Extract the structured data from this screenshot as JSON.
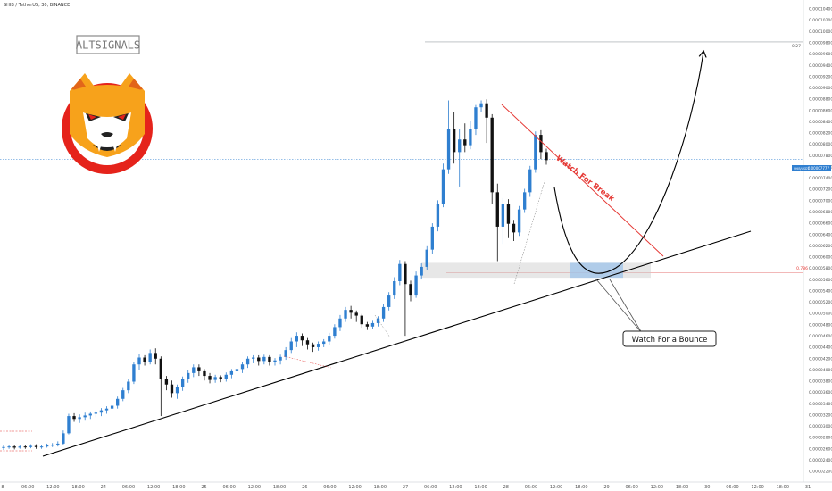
{
  "header": {
    "symbol_line": "SHIB / TetherUS, 30, BINANCE"
  },
  "brand": {
    "watermark": "ALTSIGNALS",
    "logo_icon": "shiba-inu-logo-icon"
  },
  "annotations": {
    "break_label": "Watch For Break",
    "bounce_label": "Watch For a Bounce",
    "fib_top": "0.27",
    "fib_mid": "0.786",
    "price_tag": "0.00007777",
    "price_tag_prefix": "SHIB/USDT"
  },
  "colors": {
    "up": "#2f7fd0",
    "down": "#111111",
    "trendline": "#000000",
    "break_line": "#e53935",
    "zone_fill": "#c9c9c9",
    "zone_highlight": "#9ec3ea",
    "grid": "#eef0f3"
  },
  "chart_data": {
    "type": "candlestick",
    "title": "SHIB / TetherUS, 30, BINANCE",
    "xlabel": "",
    "ylabel": "",
    "x_ticks": [
      "8",
      "06:00",
      "12:00",
      "18:00",
      "24",
      "06:00",
      "12:00",
      "18:00",
      "25",
      "06:00",
      "12:00",
      "18:00",
      "26",
      "06:00",
      "12:00",
      "18:00",
      "27",
      "06:00",
      "12:00",
      "18:00",
      "28",
      "06:00",
      "12:00",
      "18:00",
      "29",
      "06:00",
      "12:00",
      "18:00",
      "30",
      "06:00",
      "12:00",
      "18:00",
      "31"
    ],
    "y_ticks": [
      "0.00010400",
      "0.00010200",
      "0.00010000",
      "0.00009800",
      "0.00009600",
      "0.00009400",
      "0.00009200",
      "0.00009000",
      "0.00008800",
      "0.00008600",
      "0.00008400",
      "0.00008200",
      "0.00008000",
      "0.00007800",
      "0.00007600",
      "0.00007400",
      "0.00007200",
      "0.00007000",
      "0.00006800",
      "0.00006600",
      "0.00006400",
      "0.00006200",
      "0.00006000",
      "0.00005800",
      "0.00005600",
      "0.00005400",
      "0.00005200",
      "0.00005000",
      "0.00004800",
      "0.00004600",
      "0.00004400",
      "0.00004200",
      "0.00004000",
      "0.00003800",
      "0.00003600",
      "0.00003400",
      "0.00003200",
      "0.00003000",
      "0.00002800",
      "0.00002600",
      "0.00002400",
      "0.00002200"
    ],
    "ylim": [
      2.15e-05,
      0.0001055
    ],
    "grid": false,
    "current_price": 7.777e-05,
    "resistance_level": 9.82e-05,
    "support_zone": [
      5.71e-05,
      5.97e-05
    ],
    "candles": [
      [
        2.75e-05,
        2.76e-05,
        2.71e-05,
        2.79e-05
      ],
      [
        2.76e-05,
        2.77e-05,
        2.73e-05,
        2.8e-05
      ],
      [
        2.77e-05,
        2.75e-05,
        2.72e-05,
        2.8e-05
      ],
      [
        2.75e-05,
        2.77e-05,
        2.73e-05,
        2.79e-05
      ],
      [
        2.77e-05,
        2.76e-05,
        2.73e-05,
        2.8e-05
      ],
      [
        2.76e-05,
        2.78e-05,
        2.74e-05,
        2.81e-05
      ],
      [
        2.78e-05,
        2.76e-05,
        2.73e-05,
        2.81e-05
      ],
      [
        2.76e-05,
        2.77e-05,
        2.73e-05,
        2.8e-05
      ],
      [
        2.77e-05,
        2.79e-05,
        2.75e-05,
        2.82e-05
      ],
      [
        2.79e-05,
        2.8e-05,
        2.76e-05,
        2.83e-05
      ],
      [
        2.8e-05,
        2.82e-05,
        2.77e-05,
        2.86e-05
      ],
      [
        2.82e-05,
        3e-05,
        2.8e-05,
        3.05e-05
      ],
      [
        3e-05,
        3.3e-05,
        2.98e-05,
        3.34e-05
      ],
      [
        3.3e-05,
        3.25e-05,
        3.2e-05,
        3.35e-05
      ],
      [
        3.25e-05,
        3.28e-05,
        3.18e-05,
        3.33e-05
      ],
      [
        3.28e-05,
        3.31e-05,
        3.22e-05,
        3.36e-05
      ],
      [
        3.31e-05,
        3.34e-05,
        3.25e-05,
        3.38e-05
      ],
      [
        3.34e-05,
        3.36e-05,
        3.28e-05,
        3.4e-05
      ],
      [
        3.36e-05,
        3.4e-05,
        3.3e-05,
        3.44e-05
      ],
      [
        3.4e-05,
        3.43e-05,
        3.34e-05,
        3.47e-05
      ],
      [
        3.43e-05,
        3.48e-05,
        3.38e-05,
        3.51e-05
      ],
      [
        3.48e-05,
        3.6e-05,
        3.43e-05,
        3.64e-05
      ],
      [
        3.6e-05,
        3.75e-05,
        3.56e-05,
        3.79e-05
      ],
      [
        3.75e-05,
        3.9e-05,
        3.7e-05,
        3.95e-05
      ],
      [
        3.9e-05,
        4.2e-05,
        3.86e-05,
        4.25e-05
      ],
      [
        4.2e-05,
        4.32e-05,
        4.1e-05,
        4.38e-05
      ],
      [
        4.32e-05,
        4.25e-05,
        4.18e-05,
        4.36e-05
      ],
      [
        4.25e-05,
        4.4e-05,
        4.2e-05,
        4.46e-05
      ],
      [
        4.4e-05,
        4.3e-05,
        4.2e-05,
        4.48e-05
      ],
      [
        4.3e-05,
        3.95e-05,
        3.3e-05,
        4.34e-05
      ],
      [
        3.95e-05,
        3.85e-05,
        3.75e-05,
        4e-05
      ],
      [
        3.85e-05,
        3.7e-05,
        3.62e-05,
        3.92e-05
      ],
      [
        3.7e-05,
        3.8e-05,
        3.6e-05,
        3.85e-05
      ],
      [
        3.8e-05,
        3.95e-05,
        3.74e-05,
        3.99e-05
      ],
      [
        3.95e-05,
        4.05e-05,
        3.88e-05,
        4.1e-05
      ],
      [
        4.05e-05,
        4.15e-05,
        3.98e-05,
        4.2e-05
      ],
      [
        4.15e-05,
        4.08e-05,
        4e-05,
        4.2e-05
      ],
      [
        4.08e-05,
        4e-05,
        3.92e-05,
        4.12e-05
      ],
      [
        4e-05,
        3.93e-05,
        3.87e-05,
        4.05e-05
      ],
      [
        3.93e-05,
        3.98e-05,
        3.88e-05,
        4.02e-05
      ],
      [
        3.98e-05,
        3.95e-05,
        3.89e-05,
        4.01e-05
      ],
      [
        3.95e-05,
        4.02e-05,
        3.9e-05,
        4.06e-05
      ],
      [
        4.02e-05,
        4.08e-05,
        3.96e-05,
        4.12e-05
      ],
      [
        4.08e-05,
        4.12e-05,
        4.01e-05,
        4.16e-05
      ],
      [
        4.12e-05,
        4.2e-05,
        4.05e-05,
        4.25e-05
      ],
      [
        4.2e-05,
        4.3e-05,
        4.14e-05,
        4.34e-05
      ],
      [
        4.3e-05,
        4.32e-05,
        4.22e-05,
        4.36e-05
      ],
      [
        4.32e-05,
        4.26e-05,
        4.18e-05,
        4.36e-05
      ],
      [
        4.26e-05,
        4.33e-05,
        4.2e-05,
        4.37e-05
      ],
      [
        4.33e-05,
        4.24e-05,
        4.18e-05,
        4.36e-05
      ],
      [
        4.24e-05,
        4.27e-05,
        4.18e-05,
        4.31e-05
      ],
      [
        4.27e-05,
        4.33e-05,
        4.2e-05,
        4.37e-05
      ],
      [
        4.33e-05,
        4.45e-05,
        4.28e-05,
        4.5e-05
      ],
      [
        4.45e-05,
        4.6e-05,
        4.4e-05,
        4.66e-05
      ],
      [
        4.6e-05,
        4.7e-05,
        4.5e-05,
        4.76e-05
      ],
      [
        4.7e-05,
        4.62e-05,
        4.52e-05,
        4.74e-05
      ],
      [
        4.62e-05,
        4.55e-05,
        4.46e-05,
        4.66e-05
      ],
      [
        4.55e-05,
        4.5e-05,
        4.42e-05,
        4.58e-05
      ],
      [
        4.5e-05,
        4.56e-05,
        4.44e-05,
        4.6e-05
      ],
      [
        4.56e-05,
        4.6e-05,
        4.5e-05,
        4.64e-05
      ],
      [
        4.6e-05,
        4.7e-05,
        4.54e-05,
        4.75e-05
      ],
      [
        4.7e-05,
        4.85e-05,
        4.65e-05,
        4.9e-05
      ],
      [
        4.85e-05,
        5e-05,
        4.78e-05,
        5.06e-05
      ],
      [
        5e-05,
        5.15e-05,
        4.94e-05,
        5.2e-05
      ],
      [
        5.15e-05,
        5.1e-05,
        5e-05,
        5.22e-05
      ],
      [
        5.1e-05,
        5.05e-05,
        4.94e-05,
        5.14e-05
      ],
      [
        5.05e-05,
        4.9e-05,
        4.84e-05,
        5.08e-05
      ],
      [
        4.9e-05,
        4.86e-05,
        4.8e-05,
        4.94e-05
      ],
      [
        4.86e-05,
        4.92e-05,
        4.82e-05,
        4.96e-05
      ],
      [
        4.92e-05,
        5e-05,
        4.86e-05,
        5.04e-05
      ],
      [
        5e-05,
        5.2e-05,
        4.94e-05,
        5.26e-05
      ],
      [
        5.2e-05,
        5.4e-05,
        5.14e-05,
        5.46e-05
      ],
      [
        5.4e-05,
        5.65e-05,
        5.34e-05,
        5.72e-05
      ],
      [
        5.65e-05,
        5.95e-05,
        5.58e-05,
        6.02e-05
      ],
      [
        5.95e-05,
        5.6e-05,
        4.7e-05,
        6e-05
      ],
      [
        5.6e-05,
        5.4e-05,
        5.3e-05,
        5.66e-05
      ],
      [
        5.4e-05,
        5.75e-05,
        5.36e-05,
        5.82e-05
      ],
      [
        5.75e-05,
        5.9e-05,
        5.68e-05,
        5.96e-05
      ],
      [
        5.9e-05,
        6.2e-05,
        5.84e-05,
        6.26e-05
      ],
      [
        6.2e-05,
        6.6e-05,
        6.12e-05,
        6.66e-05
      ],
      [
        6.6e-05,
        7e-05,
        6.52e-05,
        7.06e-05
      ],
      [
        7e-05,
        7.6e-05,
        6.94e-05,
        7.7e-05
      ],
      [
        7.6e-05,
        8.3e-05,
        7.52e-05,
        8.8e-05
      ],
      [
        8.3e-05,
        7.9e-05,
        7.7e-05,
        8.6e-05
      ],
      [
        7.9e-05,
        8.12e-05,
        7.3e-05,
        8.3e-05
      ],
      [
        8.12e-05,
        8.02e-05,
        7.9e-05,
        8.4e-05
      ],
      [
        8.02e-05,
        8.3e-05,
        7.95e-05,
        8.45e-05
      ],
      [
        8.3e-05,
        8.68e-05,
        8.2e-05,
        8.72e-05
      ],
      [
        8.68e-05,
        8.75e-05,
        8.6e-05,
        8.8e-05
      ],
      [
        8.75e-05,
        8.5e-05,
        8.06e-05,
        8.82e-05
      ],
      [
        8.5e-05,
        7.2e-05,
        7e-05,
        8.56e-05
      ],
      [
        7.2e-05,
        6.6e-05,
        6e-05,
        7.35e-05
      ],
      [
        6.6e-05,
        7e-05,
        6.3e-05,
        7.1e-05
      ],
      [
        7e-05,
        6.65e-05,
        6.4e-05,
        7.08e-05
      ],
      [
        6.65e-05,
        6.5e-05,
        6.35e-05,
        6.72e-05
      ],
      [
        6.5e-05,
        6.9e-05,
        6.44e-05,
        6.96e-05
      ],
      [
        6.9e-05,
        7.2e-05,
        6.84e-05,
        7.26e-05
      ],
      [
        7.2e-05,
        7.6e-05,
        7.12e-05,
        7.66e-05
      ],
      [
        7.6e-05,
        8.2e-05,
        7.54e-05,
        8.26e-05
      ],
      [
        8.2e-05,
        7.9e-05,
        7.78e-05,
        8.28e-05
      ],
      [
        7.9e-05,
        7.76e-05,
        7.68e-05,
        7.96e-05
      ]
    ]
  }
}
